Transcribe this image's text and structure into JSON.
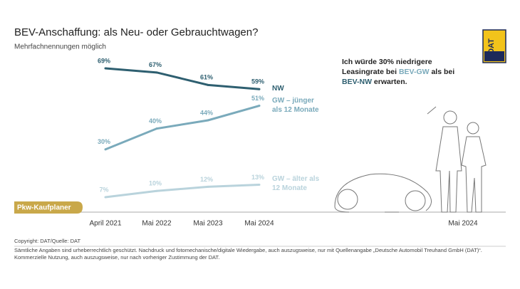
{
  "chart_data": {
    "type": "line",
    "title": "BEV-Anschaffung: als Neu- oder Gebrauchtwagen?",
    "subtitle": "Mehrfachnennungen möglich",
    "categories": [
      "April 2021",
      "Mai 2022",
      "Mai 2023",
      "Mai 2024"
    ],
    "series": [
      {
        "name": "NW",
        "color": "#2e5f70",
        "values": [
          69,
          67,
          61,
          59
        ],
        "value_labels": [
          "69%",
          "67%",
          "61%",
          "59%"
        ]
      },
      {
        "name": "GW – jünger als 12 Monate",
        "color": "#7aaabb",
        "values": [
          30,
          40,
          44,
          51
        ],
        "value_labels": [
          "30%",
          "40%",
          "44%",
          "51%"
        ]
      },
      {
        "name": "GW – älter als 12 Monate",
        "color": "#b9d3dc",
        "values": [
          7,
          10,
          12,
          13
        ],
        "value_labels": [
          "7%",
          "10%",
          "12%",
          "13%"
        ]
      }
    ],
    "callout": [
      "Ich würde 30% niedrigere Leasingrate bei ",
      "BEV-GW",
      " als bei ",
      "BEV-NW",
      " erwarten."
    ],
    "illustration_label": "Mai 2024",
    "badge": "Pkw-Kaufplaner",
    "logo": "DAT",
    "copyright": "Copyright: DAT/Quelle: DAT",
    "footnotes": [
      "Sämtliche Angaben sind urheberrechtlich geschützt. Nachdruck und fotomechanische/digitale Wiedergabe, auch auszugsweise, nur mit Quellenangabe „Deutsche Automobil Treuhand GmbH (DAT)“.",
      "Kommerzielle Nutzung, auch auszugsweise, nur nach vorheriger Zustimmung der DAT."
    ]
  }
}
